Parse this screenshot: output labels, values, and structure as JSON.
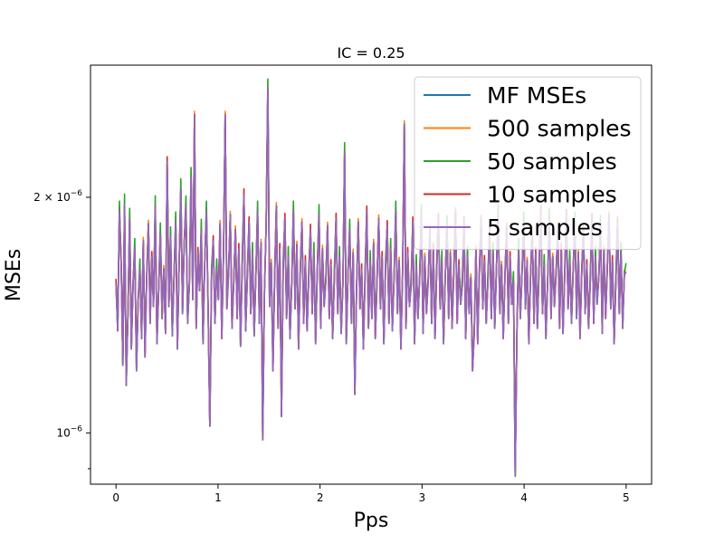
{
  "chart_data": {
    "type": "line",
    "title": "IC = 0.25",
    "xlabel": "Pps",
    "ylabel": "MSEs",
    "xlim": [
      -0.25,
      5.25
    ],
    "ylim": [
      8.6e-07,
      2.95e-06
    ],
    "yscale": "log",
    "grid": false,
    "legend_position": "upper right",
    "x_ticks": [
      0,
      1,
      2,
      3,
      4,
      5
    ],
    "x_tick_labels": [
      "0",
      "1",
      "2",
      "3",
      "4",
      "5"
    ],
    "y_ticks": [
      1e-06,
      2e-06
    ],
    "y_tick_labels": [
      {
        "base": "10",
        "exp": "−6"
      },
      {
        "base": "2 × 10",
        "exp": "−6"
      }
    ],
    "y_minor_ticks": [
      9e-07
    ],
    "x_range_of_series": [
      0,
      5
    ],
    "n_points": 300,
    "base_series": [
      1.55e-06,
      1.35e-06,
      1.92e-06,
      1.65e-06,
      1.22e-06,
      1.96e-06,
      1.15e-06,
      1.42e-06,
      1.88e-06,
      1.28e-06,
      1.55e-06,
      1.72e-06,
      1.2e-06,
      1.48e-06,
      1.62e-06,
      1.32e-06,
      1.76e-06,
      1.25e-06,
      1.58e-06,
      1.85e-06,
      1.38e-06,
      1.68e-06,
      1.45e-06,
      1.95e-06,
      1.3e-06,
      1.52e-06,
      1.8e-06,
      1.4e-06,
      1.62e-06,
      1.34e-06,
      2.22e-06,
      1.45e-06,
      1.78e-06,
      1.33e-06,
      1.58e-06,
      1.86e-06,
      1.28e-06,
      1.64e-06,
      2.05e-06,
      1.42e-06,
      1.75e-06,
      1.95e-06,
      1.38e-06,
      1.55e-06,
      2.12e-06,
      1.48e-06,
      2.55e-06,
      1.36e-06,
      1.7e-06,
      1.52e-06,
      1.82e-06,
      1.3e-06,
      1.65e-06,
      1.92e-06,
      1.43e-06,
      1.02e-06,
      1.58e-06,
      1.76e-06,
      1.38e-06,
      1.62e-06,
      1.48e-06,
      1.85e-06,
      1.32e-06,
      1.68e-06,
      2.55e-06,
      1.44e-06,
      1.6e-06,
      1.9e-06,
      1.36e-06,
      1.55e-06,
      1.82e-06,
      1.4e-06,
      1.72e-06,
      1.29e-06,
      1.64e-06,
      2.02e-06,
      1.35e-06,
      1.58e-06,
      1.86e-06,
      1.42e-06,
      1.7e-06,
      1.33e-06,
      1.6e-06,
      1.92e-06,
      1.38e-06,
      1.75e-06,
      9.8e-07,
      1.5e-06,
      1.84e-06,
      2.75e-06,
      1.45e-06,
      1.65e-06,
      1.2e-06,
      1.58e-06,
      1.95e-06,
      1.36e-06,
      1.72e-06,
      1.05e-06,
      1.62e-06,
      1.88e-06,
      1.4e-06,
      1.68e-06,
      1.32e-06,
      1.55e-06,
      1.92e-06,
      1.44e-06,
      1.74e-06,
      1.28e-06,
      1.6e-06,
      1.86e-06,
      1.38e-06,
      1.66e-06,
      1.35e-06,
      1.58e-06,
      1.82e-06,
      1.42e-06,
      1.7e-06,
      1.3e-06,
      1.62e-06,
      1.9e-06,
      1.36e-06,
      1.72e-06,
      1.45e-06,
      1.56e-06,
      1.84e-06,
      1.4e-06,
      1.64e-06,
      1.32e-06,
      1.58e-06,
      1.88e-06,
      1.42e-06,
      1.68e-06,
      1.34e-06,
      1.55e-06,
      2.28e-06,
      1.3e-06,
      1.6e-06,
      1.82e-06,
      1.38e-06,
      1.7e-06,
      1.12e-06,
      1.52e-06,
      1.86e-06,
      1.44e-06,
      1.62e-06,
      1.28e-06,
      1.58e-06,
      1.92e-06,
      1.36e-06,
      1.66e-06,
      1.4e-06,
      1.75e-06,
      1.32e-06,
      1.56e-06,
      1.88e-06,
      1.44e-06,
      1.68e-06,
      1.3e-06,
      1.62e-06,
      1.84e-06,
      1.38e-06,
      1.72e-06,
      1.35e-06,
      1.58e-06,
      1.92e-06,
      1.42e-06,
      1.66e-06,
      1.28e-06,
      1.6e-06,
      2.48e-06,
      1.36e-06,
      1.7e-06,
      1.45e-06,
      1.54e-06,
      1.86e-06,
      1.3e-06,
      1.64e-06,
      1.4e-06,
      1.58e-06,
      1.9e-06,
      1.34e-06,
      1.68e-06,
      1.42e-06,
      1.56e-06,
      1.82e-06,
      1.38e-06,
      1.72e-06,
      1.32e-06,
      1.62e-06,
      1.88e-06,
      1.44e-06,
      1.66e-06,
      1.3e-06,
      1.58e-06,
      1.84e-06,
      1.4e-06,
      1.7e-06,
      1.36e-06,
      1.6e-06,
      1.92e-06,
      1.38e-06,
      1.64e-06,
      1.46e-06,
      1.54e-06,
      1.86e-06,
      1.32e-06,
      1.68e-06,
      1.42e-06,
      1.58e-06,
      1.2e-06,
      1.34e-06,
      1.72e-06,
      1.3e-06,
      1.6e-06,
      1.88e-06,
      1.44e-06,
      1.66e-06,
      1.38e-06,
      1.56e-06,
      1.82e-06,
      1.4e-06,
      1.7e-06,
      1.36e-06,
      1.62e-06,
      1.9e-06,
      1.42e-06,
      1.64e-06,
      1.32e-06,
      1.58e-06,
      1.84e-06,
      1.38e-06,
      1.68e-06,
      1.46e-06,
      1.56e-06,
      8.8e-07,
      1.34e-06,
      1.72e-06,
      1.4e-06,
      1.6e-06,
      1.86e-06,
      1.44e-06,
      1.66e-06,
      1.3e-06,
      1.58e-06,
      1.82e-06,
      1.38e-06,
      1.7e-06,
      1.36e-06,
      1.62e-06,
      1.92e-06,
      1.42e-06,
      1.64e-06,
      1.32e-06,
      1.56e-06,
      1.88e-06,
      1.4e-06,
      1.68e-06,
      1.45e-06,
      1.6e-06,
      1.84e-06,
      1.36e-06,
      1.72e-06,
      1.34e-06,
      1.58e-06,
      1.9e-06,
      1.44e-06,
      1.66e-06,
      1.38e-06,
      1.62e-06,
      1.86e-06,
      1.4e-06,
      1.7e-06,
      1.32e-06,
      1.6e-06,
      1.82e-06,
      1.42e-06,
      1.64e-06,
      1.36e-06,
      1.56e-06,
      1.88e-06,
      1.38e-06,
      1.68e-06,
      1.46e-06,
      1.58e-06,
      1.84e-06,
      1.34e-06,
      1.72e-06,
      1.4e-06,
      1.62e-06,
      1.9e-06,
      1.44e-06,
      1.66e-06,
      1.3e-06,
      1.56e-06,
      1.86e-06,
      1.42e-06,
      1.7e-06,
      1.36e-06,
      1.6e-06,
      1.6e-06
    ],
    "series": [
      {
        "name": "MF MSEs",
        "color": "#1f77b4",
        "scale": 1.0
      },
      {
        "name": "500 samples",
        "color": "#ff7f0e",
        "scale": 1.01
      },
      {
        "name": "50 samples",
        "color": "#2ca02c",
        "scale": 1.03
      },
      {
        "name": "10 samples",
        "color": "#d62728",
        "scale": 1.015
      },
      {
        "name": "5 samples",
        "color": "#9467bd",
        "scale": 1.0
      }
    ]
  }
}
